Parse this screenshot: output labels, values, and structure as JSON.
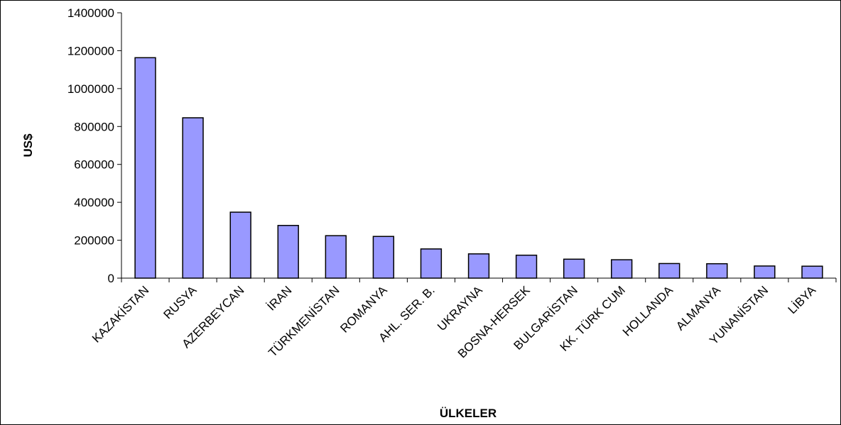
{
  "chart_data": {
    "type": "bar",
    "title": "",
    "xlabel": "ÜLKELER",
    "ylabel": "US$",
    "ylim": [
      0,
      1400000
    ],
    "yticks": [
      "0",
      "200000",
      "400000",
      "600000",
      "800000",
      "1000000",
      "1200000",
      "1400000"
    ],
    "grid": false,
    "legend": "none",
    "bar_color": "#9999ff",
    "bar_stroke": "#000000",
    "categories": [
      "KAZAKİSTAN",
      "RUSYA",
      "AZERBEYCAN",
      "İRAN",
      "TÜRKMENİSTAN",
      "ROMANYA",
      "AHL. SER. B.",
      "UKRAYNA",
      "BOSNA-HERSEK",
      "BULGARİSTAN",
      "KK. TÜRK CUM",
      "HOLLANDA",
      "ALMANYA",
      "YUNANİSTAN",
      "LİBYA"
    ],
    "values": [
      1163000,
      846000,
      348000,
      278000,
      224000,
      220000,
      154000,
      128000,
      121000,
      100000,
      97000,
      77000,
      76000,
      64000,
      63000
    ]
  }
}
